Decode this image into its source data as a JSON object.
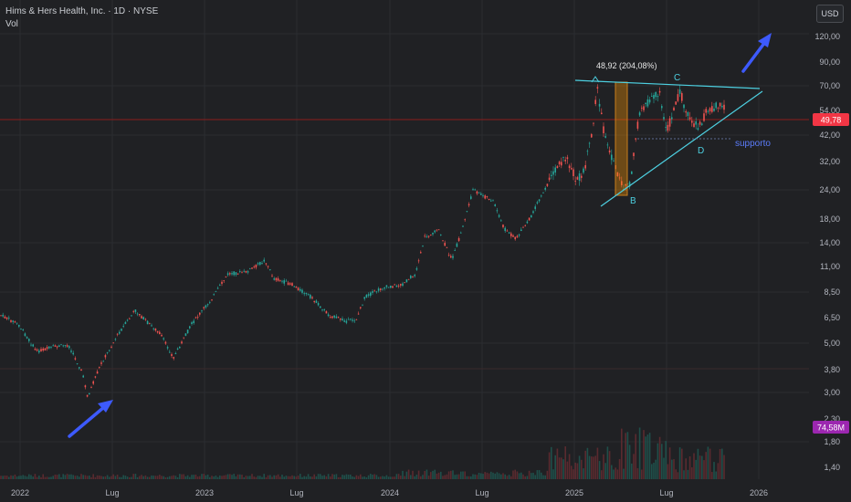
{
  "header": {
    "title": "Hims & Hers Health, Inc. · 1D · NYSE",
    "volume_label": "Vol"
  },
  "currency_button": "USD",
  "colors": {
    "background": "#202124",
    "up": "#26a69a",
    "down": "#ef5350",
    "trendline": "#4dd0e1",
    "arrow": "#3d5afe",
    "price_line": "#c62828",
    "price_badge": "#f23645",
    "volume_badge": "#9c27b0",
    "highlight": "#ff9800"
  },
  "chart_data": {
    "type": "candlestick",
    "scale": "log",
    "x_ticks": [
      "2022",
      "Lug",
      "2023",
      "Lug",
      "2024",
      "Lug",
      "2025",
      "Lug",
      "2026"
    ],
    "y_ticks": [
      "120,00",
      "90,00",
      "70,00",
      "54,00",
      "42,00",
      "32,00",
      "24,00",
      "18,00",
      "14,00",
      "11,00",
      "8,50",
      "6,50",
      "5,00",
      "3,80",
      "3,00",
      "2,30",
      "1,80",
      "1,40"
    ],
    "last_price_label": "49,78",
    "volume_label": "74,58M",
    "range_annotation": "48,92 (204,08%)",
    "pattern_labels": [
      "B",
      "C",
      "D"
    ],
    "support_label": "supporto"
  }
}
